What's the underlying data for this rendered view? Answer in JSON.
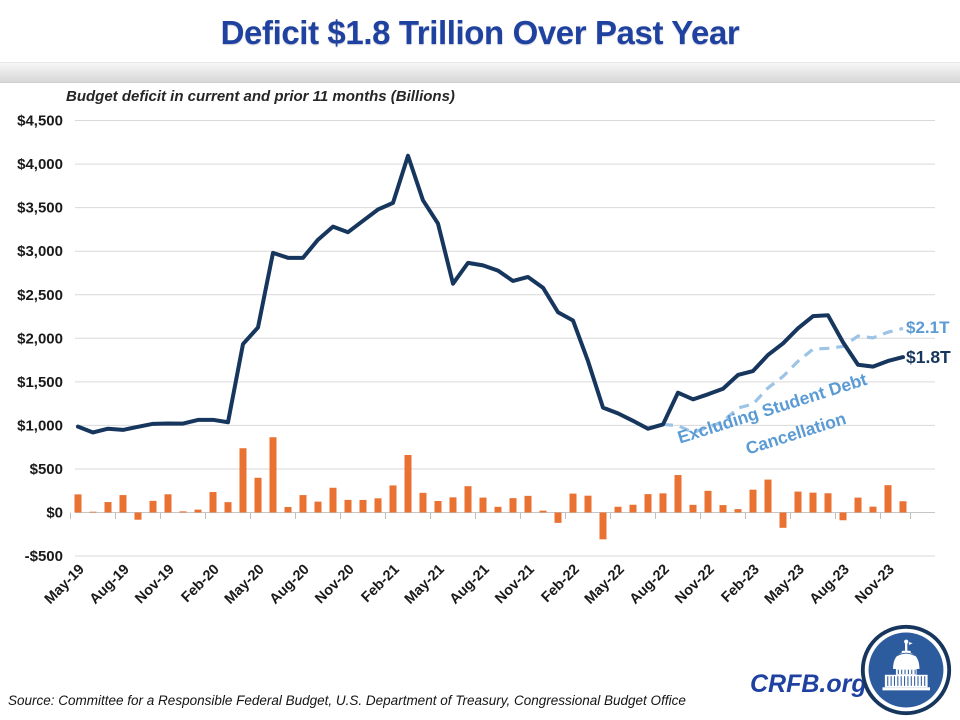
{
  "title": "Deficit $1.8 Trillion Over Past Year",
  "subtitle": "Budget deficit in current and prior 11 months (Billions)",
  "source": "Source: Committee for a Responsible Federal Budget, U.S. Department of Treasury, Congressional Budget Office",
  "branding": {
    "site": "CRFB.org",
    "logo": "crfb-capitol-logo"
  },
  "colors": {
    "title_blue": "#1F42A0",
    "line_navy": "#17365D",
    "dashed_light_blue": "#9DC3E6",
    "annotation_blue": "#5B9BD5",
    "bar_orange": "#E97132",
    "gridline_gray": "#D9D9D9",
    "axis_text": "#1a1a1a"
  },
  "chart_data": {
    "type": "combo",
    "title": "Deficit $1.8 Trillion Over Past Year",
    "subtitle": "Budget deficit in current and prior 11 months (Billions)",
    "ylim": [
      -500,
      4500
    ],
    "y_tick_values": [
      4500,
      4000,
      3500,
      3000,
      2500,
      2000,
      1500,
      1000,
      500,
      0,
      -500
    ],
    "y_tick_labels": [
      "$4,500",
      "$4,000",
      "$3,500",
      "$3,000",
      "$2,500",
      "$2,000",
      "$1,500",
      "$1,000",
      "$500",
      "$0",
      "-$500"
    ],
    "grid": "horizontal",
    "categories": [
      "May-19",
      "Jun-19",
      "Jul-19",
      "Aug-19",
      "Sep-19",
      "Oct-19",
      "Nov-19",
      "Dec-19",
      "Jan-20",
      "Feb-20",
      "Mar-20",
      "Apr-20",
      "May-20",
      "Jun-20",
      "Jul-20",
      "Aug-20",
      "Sep-20",
      "Oct-20",
      "Nov-20",
      "Dec-20",
      "Jan-21",
      "Feb-21",
      "Mar-21",
      "Apr-21",
      "May-21",
      "Jun-21",
      "Jul-21",
      "Aug-21",
      "Sep-21",
      "Oct-21",
      "Nov-21",
      "Dec-21",
      "Jan-22",
      "Feb-22",
      "Mar-22",
      "Apr-22",
      "May-22",
      "Jun-22",
      "Jul-22",
      "Aug-22",
      "Sep-22",
      "Oct-22",
      "Nov-22",
      "Dec-22",
      "Jan-23",
      "Feb-23",
      "Mar-23",
      "Apr-23",
      "May-23",
      "Jun-23",
      "Jul-23",
      "Aug-23",
      "Sep-23",
      "Oct-23",
      "Nov-23",
      "Dec-23"
    ],
    "x_tick_labels": [
      "May-19",
      "Aug-19",
      "Nov-19",
      "Feb-20",
      "May-20",
      "Aug-20",
      "Nov-20",
      "Feb-21",
      "May-21",
      "Aug-21",
      "Nov-21",
      "Feb-22",
      "May-22",
      "Aug-22",
      "Nov-22",
      "Feb-23",
      "May-23",
      "Aug-23",
      "Nov-23"
    ],
    "x_tick_every": 3,
    "series": [
      {
        "name": "Budget deficit in current and prior 11 months",
        "type": "line",
        "color": "#17365D",
        "start_index": 0,
        "values": [
          986,
          919,
          962,
          948,
          984,
          1018,
          1022,
          1021,
          1063,
          1064,
          1036,
          1934,
          2125,
          2981,
          2924,
          2924,
          3132,
          3282,
          3218,
          3349,
          3479,
          3555,
          4096,
          3584,
          3317,
          2627,
          2866,
          2837,
          2777,
          2658,
          2704,
          2581,
          2299,
          2205,
          1738,
          1204,
          1138,
          1053,
          962,
          1011,
          1376,
          1299,
          1357,
          1421,
          1579,
          1624,
          1809,
          1941,
          2115,
          2254,
          2264,
          1955,
          1696,
          1675,
          1740,
          1784
        ]
      },
      {
        "name": "Excluding Student Debt Cancellation",
        "type": "line",
        "dashed": true,
        "color": "#9DC3E6",
        "start_index": 39,
        "values": [
          1011,
          997,
          920,
          978,
          1042,
          1200,
          1245,
          1430,
          1562,
          1736,
          1875,
          1885,
          1906,
          2026,
          2005,
          2070,
          2114
        ]
      },
      {
        "name": "Monthly budget deficit",
        "type": "bar",
        "color": "#E97132",
        "start_index": 0,
        "values": [
          208,
          8,
          120,
          200,
          -83,
          134,
          209,
          13,
          33,
          235,
          119,
          738,
          399,
          864,
          63,
          200,
          125,
          284,
          145,
          144,
          163,
          311,
          660,
          226,
          132,
          174,
          302,
          171,
          65,
          165,
          191,
          21,
          -119,
          217,
          193,
          -308,
          66,
          89,
          211,
          220,
          430,
          88,
          249,
          85,
          39,
          262,
          378,
          -176,
          240,
          228,
          221,
          -89,
          171,
          67,
          314,
          129
        ]
      }
    ],
    "annotations": {
      "dashed_end_label": "$2.1T",
      "solid_end_label": "$1.8T",
      "dashed_series_label_line1": "Excluding Student Debt",
      "dashed_series_label_line2": "Cancellation"
    }
  }
}
